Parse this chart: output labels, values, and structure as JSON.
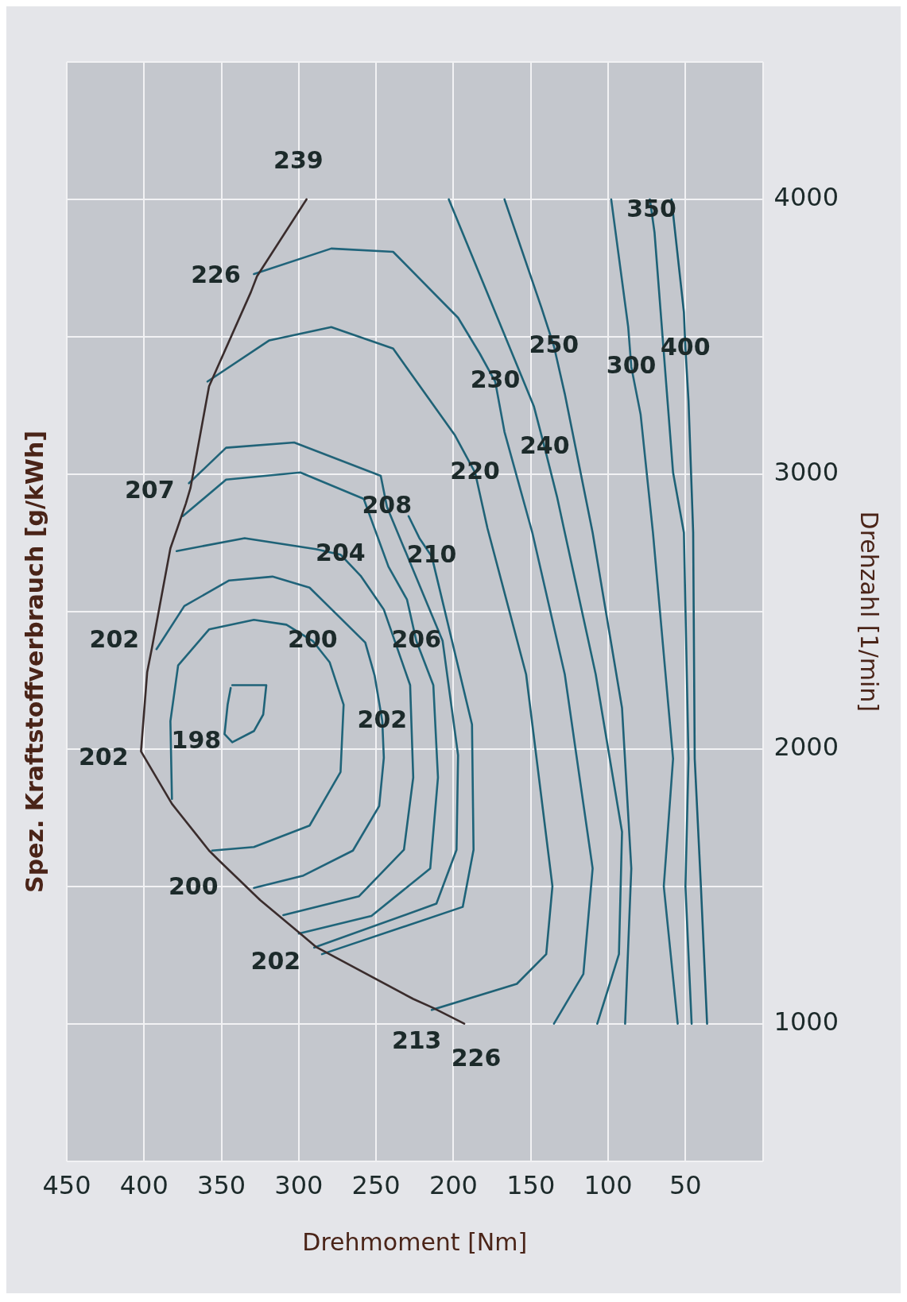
{
  "chart_data": {
    "type": "line",
    "title": "Spez. Kraftstoffverbrauch [g/kWh]",
    "xlabel": "Drehmoment [Nm]",
    "ylabel": "Drehzahl [1/min]",
    "xlim": [
      450,
      0
    ],
    "xticks": [
      450,
      400,
      350,
      300,
      250,
      200,
      150,
      100,
      50,
      {
        "value": 0,
        "label": null
      }
    ],
    "ylim": [
      500,
      4500
    ],
    "yticks": [
      {
        "value": 500,
        "label": null
      },
      1000,
      {
        "value": 1500,
        "label": null
      },
      2000,
      {
        "value": 2500,
        "label": null
      },
      3000,
      {
        "value": 3500,
        "label": null
      },
      4000,
      {
        "value": 4500,
        "label": null
      }
    ],
    "grid": true,
    "legend": false,
    "marker": "none",
    "line_style": "solid",
    "series": [
      {
        "color": "#3a2c2c",
        "x": [
          193,
          213,
          226,
          289,
          299,
          325,
          351,
          358,
          382,
          402,
          398,
          395,
          383,
          373,
          370,
          358,
          331,
          327,
          295
        ],
        "values": [
          1000,
          1057,
          1090,
          1280,
          1328,
          1450,
          1591,
          1630,
          1800,
          1991,
          2280,
          2366,
          2730,
          2893,
          2950,
          3320,
          3662,
          3720,
          4000
        ]
      },
      {
        "name": "198",
        "color": "#1f6378",
        "x": [
          343,
          321,
          323,
          329,
          343,
          348,
          346,
          344
        ],
        "values": [
          2232,
          2232,
          2125,
          2065,
          2024,
          2054,
          2161,
          2222
        ]
      },
      {
        "color": "#1f6479",
        "x": [
          382,
          383,
          378,
          358,
          329,
          308,
          291,
          280,
          271,
          273,
          293,
          329,
          356
        ],
        "values": [
          1818,
          2101,
          2304,
          2435,
          2470,
          2452,
          2393,
          2315,
          2161,
          1916,
          1721,
          1643,
          1630
        ]
      },
      {
        "color": "#20637a",
        "x": [
          392,
          374,
          345,
          317,
          293,
          257,
          251,
          246,
          245,
          248,
          265,
          297,
          329
        ],
        "values": [
          2363,
          2520,
          2613,
          2627,
          2587,
          2387,
          2268,
          2101,
          1968,
          1792,
          1630,
          1539,
          1494
        ]
      },
      {
        "color": "#1e6277",
        "x": [
          379,
          335,
          289,
          273,
          260,
          245,
          228,
          226,
          232,
          261,
          310
        ],
        "values": [
          2720,
          2767,
          2727,
          2707,
          2630,
          2507,
          2232,
          1896,
          1633,
          1464,
          1395
        ]
      },
      {
        "color": "#1f657a",
        "x": [
          375,
          347,
          299,
          258,
          242,
          230,
          224,
          213,
          210,
          215,
          253,
          300
        ],
        "values": [
          2847,
          2980,
          3006,
          2910,
          2663,
          2543,
          2393,
          2232,
          1896,
          1565,
          1392,
          1328
        ]
      },
      {
        "color": "#216378",
        "x": [
          371,
          347,
          303,
          247,
          243,
          207,
          197,
          198,
          211,
          290
        ],
        "values": [
          2967,
          3096,
          3115,
          2994,
          2881,
          2393,
          1977,
          1633,
          1437,
          1277
        ]
      },
      {
        "color": "#1d6379",
        "x": [
          229,
          222,
          214,
          209,
          188,
          187,
          194,
          285
        ],
        "values": [
          2847,
          2767,
          2700,
          2583,
          2089,
          1633,
          1425,
          1253
        ]
      },
      {
        "color": "#1f6276",
        "x": [
          359,
          319,
          279,
          239,
          199,
          186,
          178,
          153,
          136,
          140,
          159,
          214
        ],
        "values": [
          3337,
          3487,
          3535,
          3457,
          3141,
          3006,
          2803,
          2271,
          1500,
          1253,
          1145,
          1050
        ]
      },
      {
        "color": "#20647b",
        "x": [
          329,
          279,
          239,
          197,
          183,
          173,
          167,
          149,
          128,
          110,
          116,
          135
        ],
        "values": [
          3728,
          3821,
          3809,
          3569,
          3439,
          3337,
          3154,
          2787,
          2271,
          1565,
          1181,
          1000
        ]
      },
      {
        "color": "#1e6478",
        "x": [
          203,
          148,
          141,
          133,
          128,
          108,
          91,
          93,
          107
        ],
        "values": [
          4000,
          3247,
          3096,
          2917,
          2787,
          2271,
          1698,
          1253,
          1000
        ]
      },
      {
        "color": "#1f6177",
        "x": [
          167,
          143,
          135,
          128,
          110,
          91,
          85,
          89
        ],
        "values": [
          4000,
          3604,
          3465,
          3292,
          2787,
          2149,
          1565,
          1000
        ]
      },
      {
        "color": "#21647a",
        "x": [
          98,
          87,
          85,
          79,
          71,
          58,
          64,
          55
        ],
        "values": [
          4000,
          3535,
          3390,
          3218,
          2787,
          1964,
          1500,
          1000
        ]
      },
      {
        "color": "#1d6277",
        "x": [
          73,
          72,
          70,
          58,
          51,
          48,
          50,
          46
        ],
        "values": [
          4000,
          3960,
          3880,
          3006,
          2787,
          1964,
          1500,
          1000
        ]
      },
      {
        "color": "#1a5d73",
        "x": [
          59,
          51,
          50,
          48,
          45,
          44,
          40,
          36
        ],
        "values": [
          4000,
          3590,
          3457,
          3265,
          2787,
          1964,
          1500,
          1000
        ]
      }
    ],
    "annotations": [
      {
        "text": "200",
        "x": 291,
        "y": 2393
      },
      {
        "text": "202",
        "x": 246,
        "y": 2101
      },
      {
        "text": "204",
        "x": 273,
        "y": 2707
      },
      {
        "text": "206",
        "x": 224,
        "y": 2393
      },
      {
        "text": "208",
        "x": 243,
        "y": 2881
      },
      {
        "text": "210",
        "x": 214,
        "y": 2700
      },
      {
        "text": "220",
        "x": 186,
        "y": 3006
      },
      {
        "text": "230",
        "x": 173,
        "y": 3337
      },
      {
        "text": "240",
        "x": 141,
        "y": 3096
      },
      {
        "text": "250",
        "x": 135,
        "y": 3465
      },
      {
        "text": "300",
        "x": 85,
        "y": 3390
      },
      {
        "text": "350",
        "x": 72,
        "y": 3960
      },
      {
        "text": "400",
        "x": 50,
        "y": 3457
      },
      {
        "text": "226",
        "x": 193,
        "y": 1000
      },
      {
        "text": "213",
        "x": 213,
        "y": 1057
      },
      {
        "text": "202",
        "x": 299,
        "y": 1328
      },
      {
        "text": "200",
        "x": 351,
        "y": 1591
      },
      {
        "text": "202",
        "x": 402,
        "y": 1991
      },
      {
        "text": "202",
        "x": 395,
        "y": 2366
      },
      {
        "text": "207",
        "x": 373,
        "y": 2893
      },
      {
        "text": "226",
        "x": 331,
        "y": 3662
      },
      {
        "text": "239",
        "x": 295,
        "y": 4000
      }
    ]
  }
}
